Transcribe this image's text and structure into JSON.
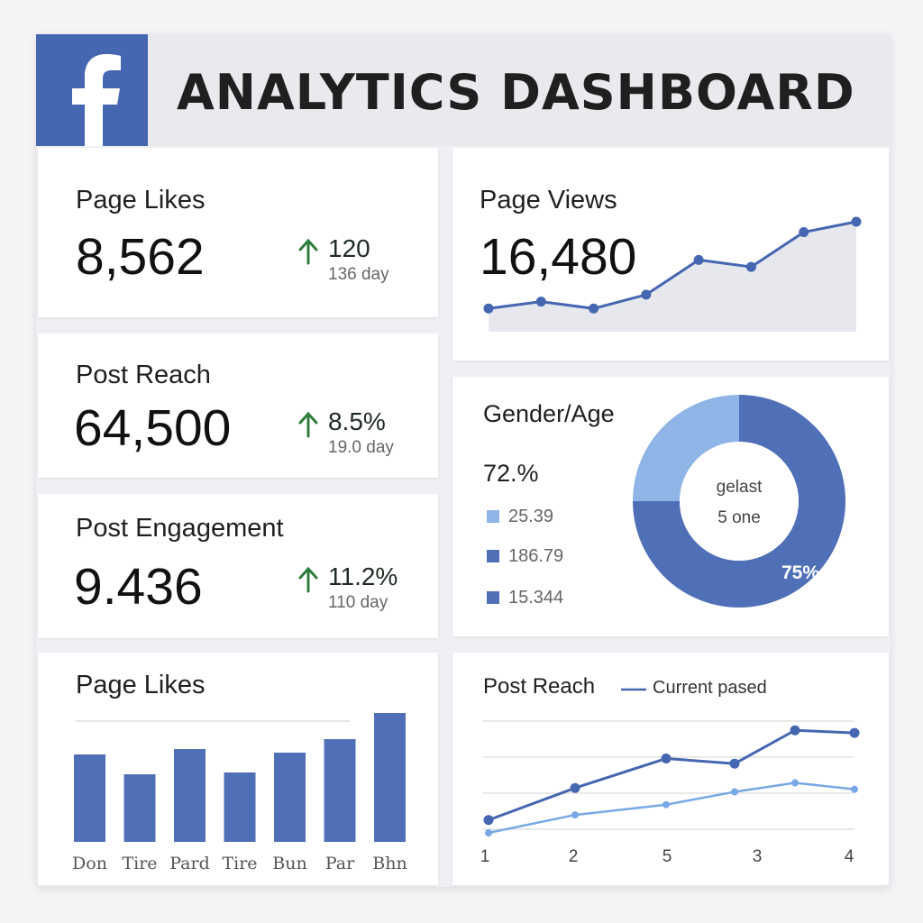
{
  "header": {
    "title": "ANALYTICS DASHBOARD",
    "logo_icon": "facebook-f-icon",
    "brand_color": "#4566b0"
  },
  "cards": {
    "page_likes": {
      "label": "Page Likes",
      "value": "8,562",
      "delta": "120",
      "delta_sub": "136 day",
      "arrow_icon": "arrow-up-icon"
    },
    "post_reach": {
      "label": "Post Reach",
      "value": "64,500",
      "delta": "8.5%",
      "delta_sub": "19.0 day",
      "arrow_icon": "arrow-up-icon"
    },
    "post_engagement": {
      "label": "Post Engagement",
      "value": "9.436",
      "delta": "11.2%",
      "delta_sub": "110 day",
      "arrow_icon": "arrow-up-icon"
    },
    "page_views": {
      "label": "Page Views",
      "value": "16,480"
    },
    "gender_age": {
      "label": "Gender/Age",
      "headline": "72.%",
      "legend": [
        {
          "text": "25.39",
          "color": "#8fb4e6"
        },
        {
          "text": "186.79",
          "color": "#4f70b7"
        },
        {
          "text": "15.344",
          "color": "#4f70b7"
        }
      ],
      "center_line1": "gelast",
      "center_line2": "5 one",
      "slice_label": "75%"
    },
    "page_likes_bars": {
      "label": "Page Likes"
    },
    "post_reach_lines": {
      "label": "Post Reach",
      "legend_label": "Current pased"
    }
  },
  "chart_data": [
    {
      "type": "area",
      "values": [
        1,
        2,
        1,
        3,
        8,
        7,
        12,
        13.5
      ]
    },
    {
      "type": "pie",
      "slices": [
        {
          "value": 25,
          "color": "#8fb4e6"
        },
        {
          "value": 75,
          "color": "#4f70b7"
        }
      ],
      "labels": [
        "75%"
      ]
    },
    {
      "type": "bar",
      "categories": [
        "Don",
        "Tire",
        "Pard",
        "Tire",
        "Bun",
        "Par",
        "Bhn"
      ],
      "values": [
        97,
        75,
        103,
        77,
        99,
        114,
        143
      ],
      "ylim": [
        0,
        160
      ],
      "color": "#4f70b7"
    },
    {
      "type": "line",
      "x_tick_labels": [
        "1",
        "2",
        "5",
        "3",
        "4"
      ],
      "series": [
        {
          "name": "Current pased",
          "color": "#4566b0",
          "values": [
            10,
            35,
            58,
            54,
            80,
            78
          ]
        },
        {
          "color": "#79a8e6",
          "values": [
            0,
            14,
            22,
            32,
            39,
            34
          ]
        }
      ],
      "ylim": [
        0,
        90
      ]
    }
  ]
}
